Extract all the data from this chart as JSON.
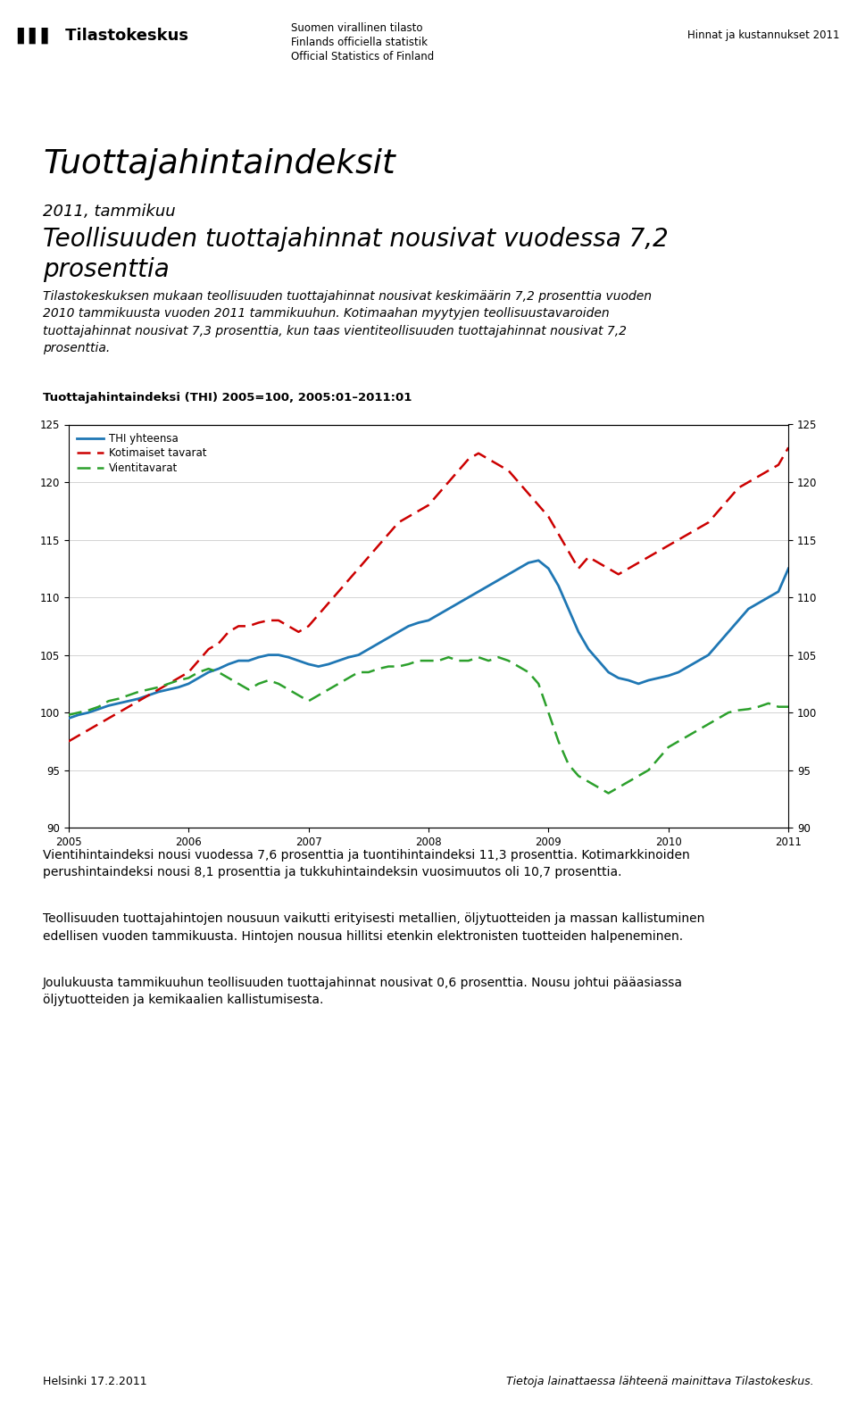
{
  "title": "Tuottajahintaindeksit",
  "subtitle": "2011, tammikuu",
  "heading": "Teollisuuden tuottajahinnat nousivat vuodessa 7,2\nprosenttia",
  "body_text1": "Tilastokeskuksen mukaan teollisuuden tuottajahinnat nousivat keskimäärin 7,2 prosenttia vuoden\n2010 tammikuusta vuoden 2011 tammikuuhun. Kotimaahan myytyjen teollisuustavaroiden\ntuottajahinnat nousivat 7,3 prosenttia, kun taas vientiteollisuuden tuottajahinnat nousivat 7,2\nprosenttia.",
  "chart_title": "Tuottajahintaindeksi (THI) 2005=100, 2005:01–2011:01",
  "body_text2": "Vientihintaindeksi nousi vuodessa 7,6 prosenttia ja tuontihintaindeksi 11,3 prosenttia. Kotimarkkinoiden\nperushintaindeksi nousi 8,1 prosenttia ja tukkuhintaindeksin vuosimuutos oli 10,7 prosenttia.",
  "body_text3": "Teollisuuden tuottajahintojen nousuun vaikutti erityisesti metallien, öljytuotteiden ja massan kallistuminen\nedellisen vuoden tammikuusta. Hintojen nousua hillitsi etenkin elektronisten tuotteiden halpeneminen.",
  "body_text4": "Joulukuusta tammikuuhun teollisuuden tuottajahinnat nousivat 0,6 prosenttia. Nousu johtui pääasiassa\nöljytuotteiden ja kemikaalien kallistumisesta.",
  "header_left1": "Suomen virallinen tilasto",
  "header_left2": "Finlands officiella statistik",
  "header_left3": "Official Statistics of Finland",
  "header_right": "Hinnat ja kustannukset 2011",
  "footer_left": "Helsinki 17.2.2011",
  "footer_right": "Tietoja lainattaessa lähteenä mainittava Tilastokeskus.",
  "legend_labels": [
    "THI yhteensa",
    "Kotimaiset tavarat",
    "Vientitavarat"
  ],
  "legend_colors": [
    "#1f77b4",
    "#cc0000",
    "#2ca02c"
  ],
  "ylim": [
    90,
    125
  ],
  "yticks": [
    90,
    95,
    100,
    105,
    110,
    115,
    120,
    125
  ],
  "xtick_labels": [
    "2005",
    "2006",
    "2007",
    "2008",
    "2009",
    "2010",
    "2011"
  ],
  "background_color": "#ffffff",
  "thi": [
    99.5,
    99.8,
    100.0,
    100.3,
    100.6,
    100.8,
    101.0,
    101.2,
    101.5,
    101.8,
    102.0,
    102.2,
    102.5,
    103.0,
    103.5,
    103.8,
    104.2,
    104.5,
    104.5,
    104.8,
    105.0,
    105.0,
    104.8,
    104.5,
    104.2,
    104.0,
    104.2,
    104.5,
    104.8,
    105.0,
    105.5,
    106.0,
    106.5,
    107.0,
    107.5,
    107.8,
    108.0,
    108.5,
    109.0,
    109.5,
    110.0,
    110.5,
    111.0,
    111.5,
    112.0,
    112.5,
    113.0,
    113.2,
    112.5,
    111.0,
    109.0,
    107.0,
    105.5,
    104.5,
    103.5,
    103.0,
    102.8,
    102.5,
    102.8,
    103.0,
    103.2,
    103.5,
    104.0,
    104.5,
    105.0,
    106.0,
    107.0,
    108.0,
    109.0,
    109.5,
    110.0,
    110.5,
    112.5
  ],
  "kot": [
    97.5,
    98.0,
    98.5,
    99.0,
    99.5,
    100.0,
    100.5,
    101.0,
    101.5,
    102.0,
    102.5,
    103.0,
    103.5,
    104.5,
    105.5,
    106.0,
    107.0,
    107.5,
    107.5,
    107.8,
    108.0,
    108.0,
    107.5,
    107.0,
    107.5,
    108.5,
    109.5,
    110.5,
    111.5,
    112.5,
    113.5,
    114.5,
    115.5,
    116.5,
    117.0,
    117.5,
    118.0,
    119.0,
    120.0,
    121.0,
    122.0,
    122.5,
    122.0,
    121.5,
    121.0,
    120.0,
    119.0,
    118.0,
    117.0,
    115.5,
    114.0,
    112.5,
    113.5,
    113.0,
    112.5,
    112.0,
    112.5,
    113.0,
    113.5,
    114.0,
    114.5,
    115.0,
    115.5,
    116.0,
    116.5,
    117.5,
    118.5,
    119.5,
    120.0,
    120.5,
    121.0,
    121.5,
    123.0
  ],
  "vie": [
    99.8,
    100.0,
    100.2,
    100.5,
    101.0,
    101.2,
    101.5,
    101.8,
    102.0,
    102.2,
    102.5,
    102.8,
    103.0,
    103.5,
    103.8,
    103.5,
    103.0,
    102.5,
    102.0,
    102.5,
    102.8,
    102.5,
    102.0,
    101.5,
    101.0,
    101.5,
    102.0,
    102.5,
    103.0,
    103.5,
    103.5,
    103.8,
    104.0,
    104.0,
    104.2,
    104.5,
    104.5,
    104.5,
    104.8,
    104.5,
    104.5,
    104.8,
    104.5,
    104.8,
    104.5,
    104.0,
    103.5,
    102.5,
    100.0,
    97.5,
    95.5,
    94.5,
    94.0,
    93.5,
    93.0,
    93.5,
    94.0,
    94.5,
    95.0,
    96.0,
    97.0,
    97.5,
    98.0,
    98.5,
    99.0,
    99.5,
    100.0,
    100.2,
    100.3,
    100.5,
    100.8,
    100.5,
    100.5
  ]
}
